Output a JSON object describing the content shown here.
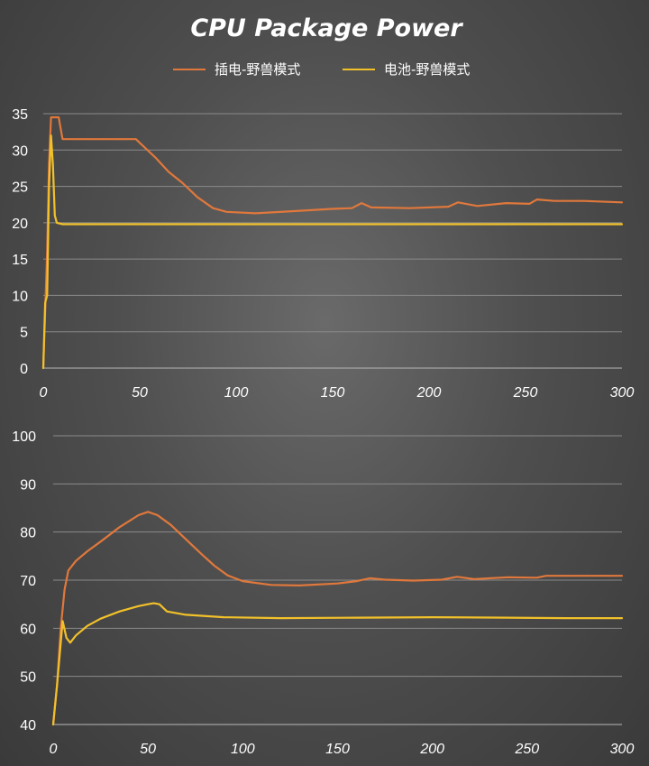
{
  "title": "CPU Package Power",
  "legend": [
    {
      "label": "插电-野兽模式",
      "color": "#e0783c"
    },
    {
      "label": "电池-野兽模式",
      "color": "#f2c12a"
    }
  ],
  "chart_data": [
    {
      "type": "line",
      "xlim": [
        0,
        300
      ],
      "ylim": [
        0,
        35
      ],
      "xticks": [
        0,
        50,
        100,
        150,
        200,
        250,
        300
      ],
      "yticks": [
        0,
        5,
        10,
        15,
        20,
        25,
        30,
        35
      ],
      "grid": true,
      "series": [
        {
          "name": "插电-野兽模式",
          "color": "#e0783c",
          "points": [
            [
              0,
              0
            ],
            [
              2,
              16
            ],
            [
              3,
              28
            ],
            [
              4,
              34.5
            ],
            [
              8,
              34.5
            ],
            [
              10,
              31.5
            ],
            [
              20,
              31.5
            ],
            [
              48,
              31.5
            ],
            [
              52,
              30.5
            ],
            [
              58,
              29
            ],
            [
              65,
              27
            ],
            [
              72,
              25.5
            ],
            [
              80,
              23.5
            ],
            [
              88,
              22
            ],
            [
              95,
              21.5
            ],
            [
              110,
              21.3
            ],
            [
              130,
              21.6
            ],
            [
              150,
              21.9
            ],
            [
              160,
              22
            ],
            [
              165,
              22.7
            ],
            [
              170,
              22.1
            ],
            [
              190,
              22
            ],
            [
              210,
              22.2
            ],
            [
              215,
              22.8
            ],
            [
              225,
              22.3
            ],
            [
              240,
              22.7
            ],
            [
              252,
              22.6
            ],
            [
              256,
              23.2
            ],
            [
              265,
              23
            ],
            [
              280,
              23
            ],
            [
              300,
              22.8
            ]
          ]
        },
        {
          "name": "电池-野兽模式",
          "color": "#f2c12a",
          "points": [
            [
              0,
              0
            ],
            [
              1,
              9
            ],
            [
              2,
              10
            ],
            [
              3,
              25
            ],
            [
              4,
              32
            ],
            [
              5,
              28
            ],
            [
              6,
              21
            ],
            [
              7,
              20
            ],
            [
              10,
              19.8
            ],
            [
              300,
              19.8
            ]
          ]
        }
      ]
    },
    {
      "type": "line",
      "xlim": [
        0,
        300
      ],
      "ylim": [
        40,
        100
      ],
      "xticks": [
        0,
        50,
        100,
        150,
        200,
        250,
        300
      ],
      "yticks": [
        40,
        50,
        60,
        70,
        80,
        90,
        100
      ],
      "grid": true,
      "series": [
        {
          "name": "插电-野兽模式",
          "color": "#e0783c",
          "points": [
            [
              0,
              40
            ],
            [
              2,
              48
            ],
            [
              4,
              60
            ],
            [
              6,
              68
            ],
            [
              8,
              72
            ],
            [
              12,
              74
            ],
            [
              18,
              76
            ],
            [
              25,
              78
            ],
            [
              35,
              81
            ],
            [
              45,
              83.5
            ],
            [
              50,
              84.2
            ],
            [
              55,
              83.5
            ],
            [
              62,
              81.5
            ],
            [
              70,
              78.5
            ],
            [
              78,
              75.5
            ],
            [
              85,
              73
            ],
            [
              92,
              71
            ],
            [
              100,
              69.8
            ],
            [
              115,
              69
            ],
            [
              130,
              68.9
            ],
            [
              150,
              69.3
            ],
            [
              160,
              69.8
            ],
            [
              167,
              70.4
            ],
            [
              175,
              70.1
            ],
            [
              190,
              69.9
            ],
            [
              205,
              70.1
            ],
            [
              213,
              70.7
            ],
            [
              222,
              70.2
            ],
            [
              240,
              70.6
            ],
            [
              255,
              70.5
            ],
            [
              260,
              70.9
            ],
            [
              300,
              70.9
            ]
          ]
        },
        {
          "name": "电池-野兽模式",
          "color": "#f2c12a",
          "points": [
            [
              0,
              40
            ],
            [
              2,
              48
            ],
            [
              4,
              57
            ],
            [
              5,
              61.5
            ],
            [
              7,
              58
            ],
            [
              9,
              57
            ],
            [
              12,
              58.5
            ],
            [
              18,
              60.5
            ],
            [
              25,
              62
            ],
            [
              35,
              63.5
            ],
            [
              45,
              64.6
            ],
            [
              50,
              65
            ],
            [
              53,
              65.2
            ],
            [
              56,
              65
            ],
            [
              60,
              63.5
            ],
            [
              70,
              62.8
            ],
            [
              90,
              62.3
            ],
            [
              120,
              62.1
            ],
            [
              160,
              62.2
            ],
            [
              200,
              62.3
            ],
            [
              240,
              62.2
            ],
            [
              270,
              62.1
            ],
            [
              300,
              62.1
            ]
          ]
        }
      ]
    }
  ]
}
